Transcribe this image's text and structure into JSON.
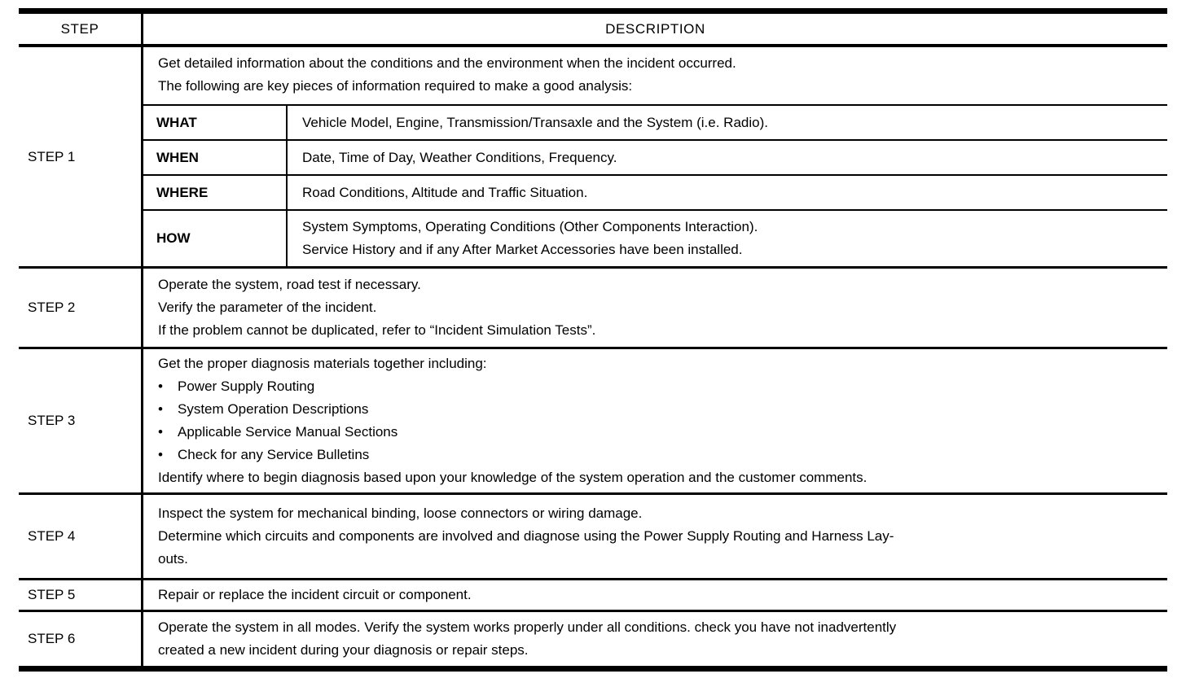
{
  "colors": {
    "text": "#000000",
    "background": "#ffffff",
    "border": "#000000"
  },
  "glyphs": {
    "bullet": "•"
  },
  "header": {
    "step": "STEP",
    "description": "DESCRIPTION"
  },
  "rows": [
    {
      "label": "STEP 1",
      "intro_lines": [
        "Get detailed information about the conditions and the environment when the incident occurred.",
        "The following are key pieces of information required to make a good analysis:"
      ],
      "sub_rows": [
        {
          "key": "WHAT",
          "lines": [
            "Vehicle Model, Engine, Transmission/Transaxle and the System (i.e. Radio)."
          ]
        },
        {
          "key": "WHEN",
          "lines": [
            "Date, Time of Day, Weather Conditions, Frequency."
          ]
        },
        {
          "key": "WHERE",
          "lines": [
            "Road Conditions, Altitude and Traffic Situation."
          ]
        },
        {
          "key": "HOW",
          "lines": [
            "System Symptoms, Operating Conditions (Other Components Interaction).",
            "Service History and if any After Market Accessories have been installed."
          ]
        }
      ]
    },
    {
      "label": "STEP 2",
      "lines": [
        "Operate the system, road test if necessary.",
        "Verify the parameter of the incident.",
        "If the problem cannot be duplicated, refer to “Incident Simulation Tests”."
      ]
    },
    {
      "label": "STEP 3",
      "intro": "Get the proper diagnosis materials together including:",
      "bullets": [
        "Power Supply Routing",
        "System Operation Descriptions",
        "Applicable Service Manual Sections",
        "Check for any Service Bulletins"
      ],
      "outro": "Identify where to begin diagnosis based upon your knowledge of the system operation and the customer comments."
    },
    {
      "label": "STEP 4",
      "lines": [
        "Inspect the system for mechanical binding, loose connectors or wiring damage.",
        "Determine which circuits and components are involved and diagnose using the Power Supply Routing and Harness Lay-",
        "outs."
      ]
    },
    {
      "label": "STEP 5",
      "lines": [
        "Repair or replace the incident circuit or component."
      ]
    },
    {
      "label": "STEP 6",
      "lines": [
        "Operate the system in all modes. Verify the system works properly under all conditions. check you have not inadvertently",
        "created a new incident during your diagnosis or repair steps."
      ]
    }
  ]
}
